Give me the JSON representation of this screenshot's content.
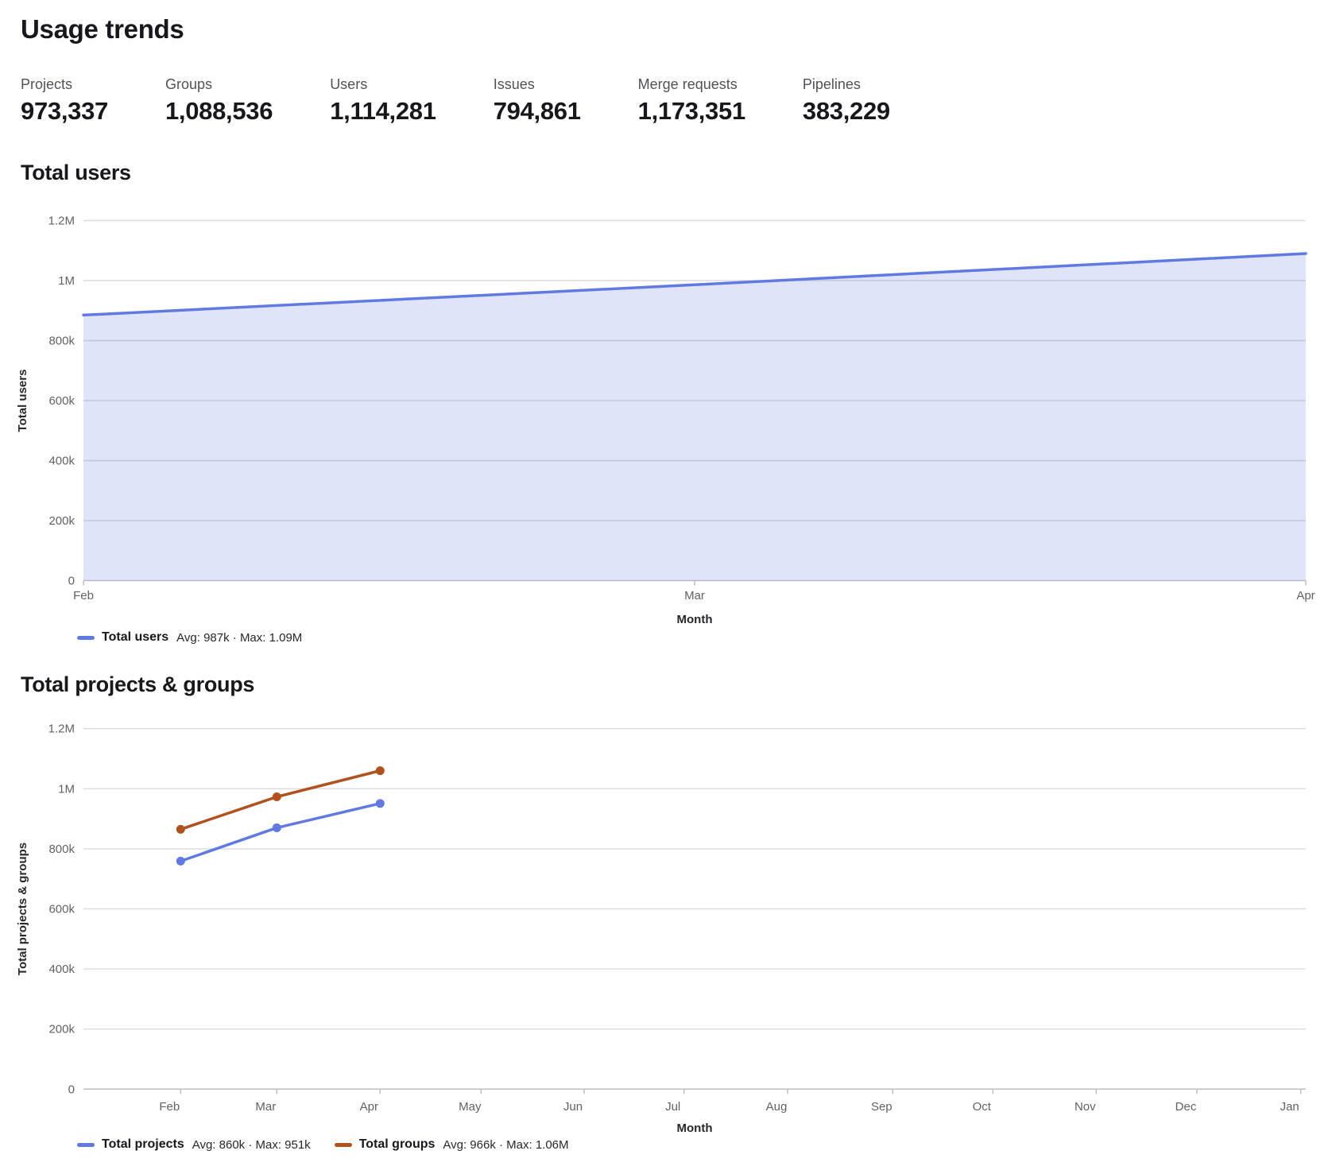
{
  "page": {
    "title": "Usage trends"
  },
  "stats": [
    {
      "label": "Projects",
      "value": "973,337"
    },
    {
      "label": "Groups",
      "value": "1,088,536"
    },
    {
      "label": "Users",
      "value": "1,114,281"
    },
    {
      "label": "Issues",
      "value": "794,861"
    },
    {
      "label": "Merge requests",
      "value": "1,173,351"
    },
    {
      "label": "Pipelines",
      "value": "383,229"
    }
  ],
  "chart_data": [
    {
      "type": "area",
      "title": "Total users",
      "x": [
        "Feb",
        "Mar",
        "Apr"
      ],
      "series": [
        {
          "name": "Total users",
          "values": [
            885000,
            986000,
            1090000
          ],
          "color": "#617ae2",
          "area_fill": "rgba(97,122,226,0.2)"
        }
      ],
      "xlabel": "Month",
      "ylabel": "Total users",
      "ylim": [
        0,
        1200000
      ],
      "y_tick_values": [
        0,
        200000,
        400000,
        600000,
        800000,
        1000000,
        1200000
      ],
      "y_tick_labels": [
        "0",
        "200k",
        "400k",
        "600k",
        "800k",
        "1M",
        "1.2M"
      ],
      "grid": true,
      "show_points": false,
      "legend_position": "bottom-left",
      "legend": [
        {
          "label": "Total users",
          "summary": "Avg: 987k · Max: 1.09M"
        }
      ]
    },
    {
      "type": "line",
      "title": "Total projects & groups",
      "x": [
        "Feb",
        "Mar",
        "Apr",
        "May",
        "Jun",
        "Jul",
        "Aug",
        "Sep",
        "Oct",
        "Nov",
        "Dec",
        "Jan"
      ],
      "series": [
        {
          "name": "Total projects",
          "values": [
            759000,
            870000,
            951000
          ],
          "color": "#617ae2"
        },
        {
          "name": "Total groups",
          "values": [
            865000,
            973000,
            1060000
          ],
          "color": "#b0521f"
        }
      ],
      "xlabel": "Month",
      "ylabel": "Total projects & groups",
      "ylim": [
        0,
        1200000
      ],
      "y_tick_values": [
        0,
        200000,
        400000,
        600000,
        800000,
        1000000,
        1200000
      ],
      "y_tick_labels": [
        "0",
        "200k",
        "400k",
        "600k",
        "800k",
        "1M",
        "1.2M"
      ],
      "grid": true,
      "show_points": true,
      "legend_position": "bottom-left",
      "legend": [
        {
          "label": "Total projects",
          "summary": "Avg: 860k · Max: 951k"
        },
        {
          "label": "Total groups",
          "summary": "Avg: 966k · Max: 1.06M"
        }
      ]
    }
  ],
  "colors": {
    "grid_line": "#dcdcde",
    "axis_line": "#bfbfc3",
    "tick_text": "#626168"
  }
}
